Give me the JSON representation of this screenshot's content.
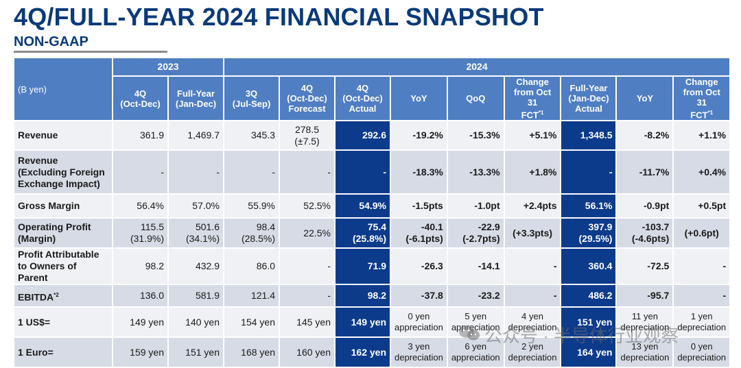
{
  "title": "4Q/FULL-YEAR 2024 FINANCIAL SNAPSHOT",
  "subtitle": "NON-GAAP",
  "colors": {
    "title": "#0a3a7a",
    "header": "#4f7ec2",
    "highlight": "#0c3b8c",
    "row_light": "#f0f1f4",
    "row_shade": "#d7dbe6"
  },
  "table": {
    "corner": "(B yen)",
    "group_2023": "2023",
    "group_2024": "2024",
    "columns": [
      {
        "l1": "4Q",
        "l2": "(Oct-Dec)",
        "l3": ""
      },
      {
        "l1": "Full-Year",
        "l2": "(Jan-Dec)",
        "l3": ""
      },
      {
        "l1": "3Q",
        "l2": "(Jul-Sep)",
        "l3": ""
      },
      {
        "l1": "4Q",
        "l2": "(Oct-Dec)",
        "l3": "Forecast"
      },
      {
        "l1": "4Q",
        "l2": "(Oct-Dec)",
        "l3": "Actual"
      },
      {
        "l1": "YoY",
        "l2": "",
        "l3": ""
      },
      {
        "l1": "QoQ",
        "l2": "",
        "l3": ""
      },
      {
        "l1": "Change",
        "l2": "from Oct 31",
        "l3": "FCT",
        "sup": "*1"
      },
      {
        "l1": "Full-Year",
        "l2": "(Jan-Dec)",
        "l3": "Actual"
      },
      {
        "l1": "YoY",
        "l2": "",
        "l3": ""
      },
      {
        "l1": "Change",
        "l2": "from Oct 31",
        "l3": "FCT",
        "sup": "*1"
      }
    ],
    "rows": [
      {
        "label": "Revenue",
        "cells": [
          {
            "a": "361.9",
            "b": ""
          },
          {
            "a": "1,469.7",
            "b": ""
          },
          {
            "a": "345.3",
            "b": ""
          },
          {
            "a": "278.5",
            "b": "(±7.5)"
          },
          {
            "a": "292.6",
            "b": ""
          },
          {
            "a": "-19.2%",
            "b": ""
          },
          {
            "a": "-15.3%",
            "b": ""
          },
          {
            "a": "+5.1%",
            "b": ""
          },
          {
            "a": "1,348.5",
            "b": ""
          },
          {
            "a": "-8.2%",
            "b": ""
          },
          {
            "a": "+1.1%",
            "b": ""
          }
        ]
      },
      {
        "label": "Revenue (Excluding Foreign Exchange Impact)",
        "cells": [
          {
            "a": "-",
            "b": ""
          },
          {
            "a": "-",
            "b": ""
          },
          {
            "a": "-",
            "b": ""
          },
          {
            "a": "-",
            "b": ""
          },
          {
            "a": "-",
            "b": ""
          },
          {
            "a": "-18.3%",
            "b": ""
          },
          {
            "a": "-13.3%",
            "b": ""
          },
          {
            "a": "+1.8%",
            "b": ""
          },
          {
            "a": "-",
            "b": ""
          },
          {
            "a": "-11.7%",
            "b": ""
          },
          {
            "a": "+0.4%",
            "b": ""
          }
        ]
      },
      {
        "label": "Gross Margin",
        "cells": [
          {
            "a": "56.4%",
            "b": ""
          },
          {
            "a": "57.0%",
            "b": ""
          },
          {
            "a": "55.9%",
            "b": ""
          },
          {
            "a": "52.5%",
            "b": ""
          },
          {
            "a": "54.9%",
            "b": ""
          },
          {
            "a": "-1.5pts",
            "b": ""
          },
          {
            "a": "-1.0pt",
            "b": ""
          },
          {
            "a": "+2.4pts",
            "b": ""
          },
          {
            "a": "56.1%",
            "b": ""
          },
          {
            "a": "-0.9pt",
            "b": ""
          },
          {
            "a": "+0.5pt",
            "b": ""
          }
        ]
      },
      {
        "label": "Operating Profit (Margin)",
        "cells": [
          {
            "a": "115.5",
            "b": "(31.9%)"
          },
          {
            "a": "501.6",
            "b": "(34.1%)"
          },
          {
            "a": "98.4",
            "b": "(28.5%)"
          },
          {
            "a": "22.5%",
            "b": ""
          },
          {
            "a": "75.4",
            "b": "(25.8%)"
          },
          {
            "a": "-40.1",
            "b": "(-6.1pts)"
          },
          {
            "a": "-22.9",
            "b": "(-2.7pts)"
          },
          {
            "a": "(+3.3pts)",
            "b": ""
          },
          {
            "a": "397.9",
            "b": "(29.5%)"
          },
          {
            "a": "-103.7",
            "b": "(-4.6pts)"
          },
          {
            "a": "(+0.6pt)",
            "b": ""
          }
        ]
      },
      {
        "label": "Profit Attributable to Owners of Parent",
        "cells": [
          {
            "a": "98.2",
            "b": ""
          },
          {
            "a": "432.9",
            "b": ""
          },
          {
            "a": "86.0",
            "b": ""
          },
          {
            "a": "-",
            "b": ""
          },
          {
            "a": "71.9",
            "b": ""
          },
          {
            "a": "-26.3",
            "b": ""
          },
          {
            "a": "-14.1",
            "b": ""
          },
          {
            "a": "-",
            "b": ""
          },
          {
            "a": "360.4",
            "b": ""
          },
          {
            "a": "-72.5",
            "b": ""
          },
          {
            "a": "-",
            "b": ""
          }
        ]
      },
      {
        "label": "EBITDA",
        "label_sup": "*2",
        "cells": [
          {
            "a": "136.0",
            "b": ""
          },
          {
            "a": "581.9",
            "b": ""
          },
          {
            "a": "121.4",
            "b": ""
          },
          {
            "a": "-",
            "b": ""
          },
          {
            "a": "98.2",
            "b": ""
          },
          {
            "a": "-37.8",
            "b": ""
          },
          {
            "a": "-23.2",
            "b": ""
          },
          {
            "a": "-",
            "b": ""
          },
          {
            "a": "486.2",
            "b": ""
          },
          {
            "a": "-95.7",
            "b": ""
          },
          {
            "a": "-",
            "b": ""
          }
        ]
      },
      {
        "label": "1 US$=",
        "cells": [
          {
            "a": "149 yen",
            "b": ""
          },
          {
            "a": "140 yen",
            "b": ""
          },
          {
            "a": "154 yen",
            "b": ""
          },
          {
            "a": "145 yen",
            "b": ""
          },
          {
            "a": "149 yen",
            "b": ""
          },
          {
            "a": "0 yen",
            "b": "appreciation"
          },
          {
            "a": "5 yen",
            "b": "appreciation"
          },
          {
            "a": "4 yen",
            "b": "depreciation"
          },
          {
            "a": "151 yen",
            "b": ""
          },
          {
            "a": "11 yen",
            "b": "depreciation"
          },
          {
            "a": "1 yen",
            "b": "depreciation"
          }
        ]
      },
      {
        "label": "1 Euro=",
        "cells": [
          {
            "a": "159 yen",
            "b": ""
          },
          {
            "a": "151 yen",
            "b": ""
          },
          {
            "a": "168 yen",
            "b": ""
          },
          {
            "a": "160 yen",
            "b": ""
          },
          {
            "a": "162 yen",
            "b": ""
          },
          {
            "a": "3 yen",
            "b": "depreciation"
          },
          {
            "a": "6 yen",
            "b": "appreciation"
          },
          {
            "a": "2 yen",
            "b": "depreciation"
          },
          {
            "a": "164 yen",
            "b": ""
          },
          {
            "a": "13 yen",
            "b": "depreciation"
          },
          {
            "a": "0 yen",
            "b": "depreciation"
          }
        ]
      }
    ]
  },
  "watermark": {
    "text": "公众号 · 半导体行业观察",
    "icon": "wechat-icon"
  }
}
